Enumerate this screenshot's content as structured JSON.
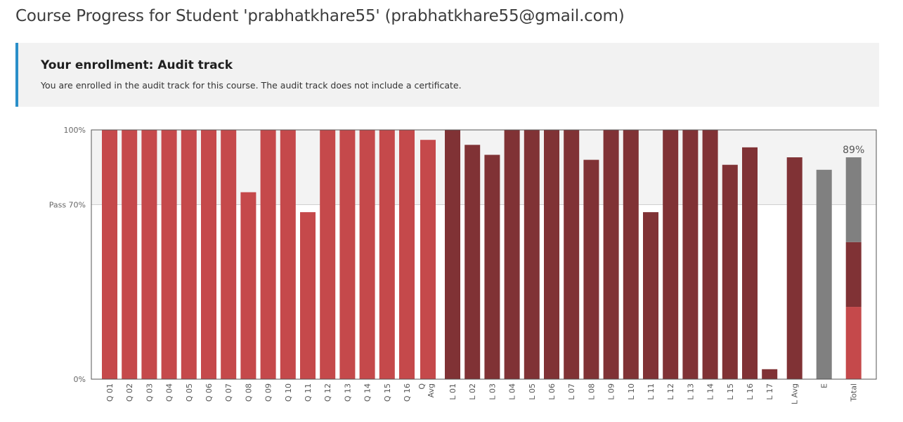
{
  "header": {
    "title": "Course Progress for Student 'prabhatkhare55' (prabhatkhare55@gmail.com)"
  },
  "enrollment": {
    "title": "Your enrollment: Audit track",
    "message": "You are enrolled in the audit track for this course. The audit track does not include a certificate."
  },
  "colors": {
    "quiz": "#c5494b",
    "lab": "#803235",
    "exam": "#808080",
    "pass_band": "#f3f3f3",
    "accent": "#2a8fc9"
  },
  "chart_data": {
    "type": "bar",
    "title": "",
    "xlabel": "",
    "ylabel": "",
    "ylim": [
      0,
      100
    ],
    "grid": false,
    "y_ticks": [
      {
        "value": 100,
        "label": "100%"
      },
      {
        "value": 70,
        "label": "Pass 70%"
      },
      {
        "value": 0,
        "label": "0%"
      }
    ],
    "total_label": "89%",
    "bars": [
      {
        "label": "Q 01",
        "value": 100,
        "group": "quiz"
      },
      {
        "label": "Q 02",
        "value": 100,
        "group": "quiz"
      },
      {
        "label": "Q 03",
        "value": 100,
        "group": "quiz"
      },
      {
        "label": "Q 04",
        "value": 100,
        "group": "quiz"
      },
      {
        "label": "Q 05",
        "value": 100,
        "group": "quiz"
      },
      {
        "label": "Q 06",
        "value": 100,
        "group": "quiz"
      },
      {
        "label": "Q 07",
        "value": 100,
        "group": "quiz"
      },
      {
        "label": "Q 08",
        "value": 75,
        "group": "quiz"
      },
      {
        "label": "Q 09",
        "value": 100,
        "group": "quiz"
      },
      {
        "label": "Q 10",
        "value": 100,
        "group": "quiz"
      },
      {
        "label": "Q 11",
        "value": 67,
        "group": "quiz"
      },
      {
        "label": "Q 12",
        "value": 100,
        "group": "quiz"
      },
      {
        "label": "Q 13",
        "value": 100,
        "group": "quiz"
      },
      {
        "label": "Q 14",
        "value": 100,
        "group": "quiz"
      },
      {
        "label": "Q 15",
        "value": 100,
        "group": "quiz"
      },
      {
        "label": "Q 16",
        "value": 100,
        "group": "quiz"
      },
      {
        "label": "Q Avg",
        "value": 96,
        "group": "quiz",
        "avg": true
      },
      {
        "label": "L 01",
        "value": 100,
        "group": "lab"
      },
      {
        "label": "L 02",
        "value": 94,
        "group": "lab"
      },
      {
        "label": "L 03",
        "value": 90,
        "group": "lab"
      },
      {
        "label": "L 04",
        "value": 100,
        "group": "lab"
      },
      {
        "label": "L 05",
        "value": 100,
        "group": "lab"
      },
      {
        "label": "L 06",
        "value": 100,
        "group": "lab"
      },
      {
        "label": "L 07",
        "value": 100,
        "group": "lab"
      },
      {
        "label": "L 08",
        "value": 88,
        "group": "lab"
      },
      {
        "label": "L 09",
        "value": 100,
        "group": "lab"
      },
      {
        "label": "L 10",
        "value": 100,
        "group": "lab"
      },
      {
        "label": "L 11",
        "value": 67,
        "group": "lab"
      },
      {
        "label": "L 12",
        "value": 100,
        "group": "lab"
      },
      {
        "label": "L 13",
        "value": 100,
        "group": "lab"
      },
      {
        "label": "L 14",
        "value": 100,
        "group": "lab"
      },
      {
        "label": "L 15",
        "value": 86,
        "group": "lab"
      },
      {
        "label": "L 16",
        "value": 93,
        "group": "lab"
      },
      {
        "label": "L 17",
        "value": 4,
        "group": "lab"
      },
      {
        "label": "L Avg",
        "value": 89,
        "group": "lab",
        "avg": true
      },
      {
        "label": "E",
        "value": 84,
        "group": "exam"
      },
      {
        "label": "Total",
        "value": 89,
        "group": "total",
        "stack": [
          {
            "group": "quiz",
            "value": 29
          },
          {
            "group": "lab",
            "value": 26
          },
          {
            "group": "exam",
            "value": 34
          }
        ]
      }
    ]
  }
}
